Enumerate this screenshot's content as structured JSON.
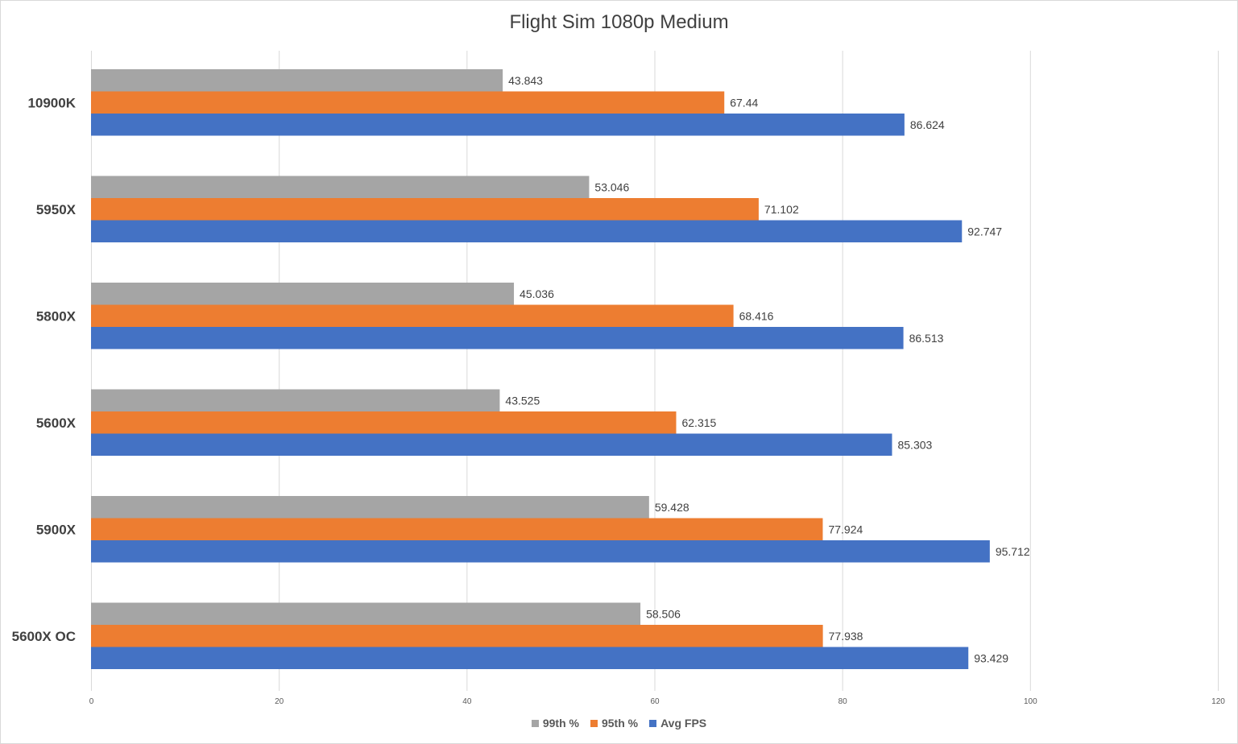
{
  "colors": {
    "p99": "#a5a5a5",
    "p95": "#ed7d31",
    "avg": "#4472c4",
    "grid": "#d9d9d9"
  },
  "chart_data": {
    "type": "bar",
    "orientation": "horizontal",
    "title": "Flight Sim 1080p Medium",
    "categories": [
      "10900K",
      "5950X",
      "5800X",
      "5600X",
      "5900X",
      "5600X OC"
    ],
    "series": [
      {
        "name": "99th %",
        "color": "#a5a5a5",
        "values": [
          43.843,
          53.046,
          45.036,
          43.525,
          59.428,
          58.506
        ]
      },
      {
        "name": "95th %",
        "color": "#ed7d31",
        "values": [
          67.44,
          71.102,
          68.416,
          62.315,
          77.924,
          77.938
        ]
      },
      {
        "name": "Avg FPS",
        "color": "#4472c4",
        "values": [
          86.624,
          92.747,
          86.513,
          85.303,
          95.712,
          93.429
        ]
      }
    ],
    "data_labels": [
      [
        "43.843",
        "67.44",
        "86.624"
      ],
      [
        "53.046",
        "71.102",
        "92.747"
      ],
      [
        "45.036",
        "68.416",
        "86.513"
      ],
      [
        "43.525",
        "62.315",
        "85.303"
      ],
      [
        "59.428",
        "77.924",
        "95.712"
      ],
      [
        "58.506",
        "77.938",
        "93.429"
      ]
    ],
    "xlim": [
      0,
      120
    ],
    "xticks": [
      "0",
      "20",
      "40",
      "60",
      "80",
      "100",
      "120"
    ],
    "xlabel": "",
    "ylabel": "",
    "grid": true,
    "legend_position": "bottom"
  }
}
